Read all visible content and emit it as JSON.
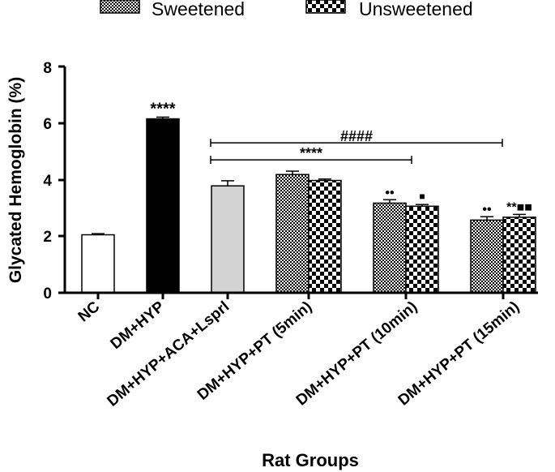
{
  "chart_data": {
    "type": "bar",
    "title": "",
    "xlabel": "Rat Groups",
    "ylabel": "Glycated Hemoglobin (%)",
    "ylim": [
      0,
      8
    ],
    "yticks": [
      "0",
      "2",
      "4",
      "6",
      "8"
    ],
    "legend": [
      {
        "name": "Sweetened",
        "pattern": "dense-checker"
      },
      {
        "name": "Unsweetened",
        "pattern": "large-checker"
      }
    ],
    "categories": [
      "NC",
      "DM+HYP",
      "DM+HYP+ACA+Lsprl",
      "DM+HYP+PT (5min)",
      "DM+HYP+PT (10min)",
      "DM+HYP+PT (15min)"
    ],
    "bars": [
      {
        "category": 0,
        "series": "",
        "value": 2.05,
        "error": 0.04,
        "fill": "#ffffff",
        "pattern": "none"
      },
      {
        "category": 1,
        "series": "",
        "value": 6.15,
        "error": 0.06,
        "fill": "#000000",
        "pattern": "none"
      },
      {
        "category": 2,
        "series": "",
        "value": 3.78,
        "error": 0.18,
        "fill": "#d3d3d3",
        "pattern": "none"
      },
      {
        "category": 3,
        "series": "Sweetened",
        "value": 4.18,
        "error": 0.12,
        "pattern": "dense-checker"
      },
      {
        "category": 3,
        "series": "Unsweetened",
        "value": 3.97,
        "error": 0.05,
        "pattern": "large-checker"
      },
      {
        "category": 4,
        "series": "Sweetened",
        "value": 3.17,
        "error": 0.12,
        "pattern": "dense-checker"
      },
      {
        "category": 4,
        "series": "Unsweetened",
        "value": 3.06,
        "error": 0.06,
        "pattern": "large-checker"
      },
      {
        "category": 5,
        "series": "Sweetened",
        "value": 2.57,
        "error": 0.12,
        "pattern": "dense-checker"
      },
      {
        "category": 5,
        "series": "Unsweetened",
        "value": 2.67,
        "error": 0.1,
        "pattern": "large-checker"
      }
    ],
    "significance_brackets": [
      {
        "label": "####",
        "from_category": 2,
        "to_category": 5,
        "value": 5.3
      },
      {
        "label": "****",
        "from_category": 2,
        "to_category": 4,
        "value": 4.7
      }
    ],
    "bar_annotations": [
      {
        "bar": 1,
        "text": "****"
      },
      {
        "bar": 5,
        "text": "••"
      },
      {
        "bar": 6,
        "text": "■"
      },
      {
        "bar": 7,
        "text": "••"
      },
      {
        "bar": 8,
        "text": "**■■"
      }
    ],
    "colors": {
      "axis": "#000000",
      "nc": "#ffffff",
      "dm_hyp": "#000000",
      "aca": "#d3d3d3"
    }
  }
}
